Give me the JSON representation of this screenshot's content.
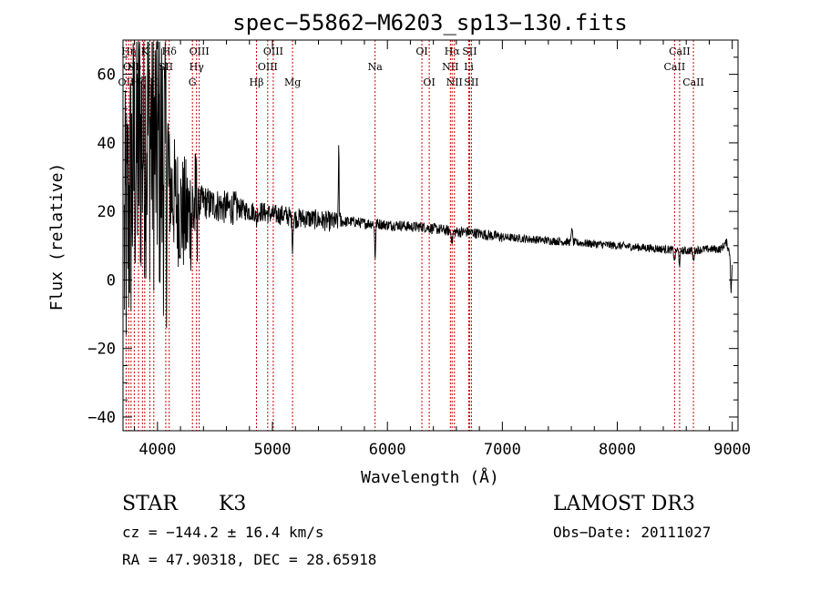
{
  "chart_data": {
    "type": "line",
    "title": "spec−55862−M6203_sp13−130.fits",
    "xlabel": "Wavelength (Å)",
    "ylabel": "Flux (relative)",
    "xlim": [
      3700,
      9050
    ],
    "ylim": [
      -44,
      70
    ],
    "x_ticks": [
      4000,
      5000,
      6000,
      7000,
      8000,
      9000
    ],
    "x_tick_labels": [
      "4000",
      "5000",
      "6000",
      "7000",
      "8000",
      "9000"
    ],
    "y_ticks": [
      -40,
      -20,
      0,
      20,
      40,
      60
    ],
    "y_tick_labels": [
      "−40",
      "−20",
      "0",
      "20",
      "40",
      "60"
    ],
    "series": [
      {
        "name": "spectrum",
        "anchors": [
          [
            3700,
            5
          ],
          [
            3750,
            20
          ],
          [
            3800,
            35
          ],
          [
            3850,
            40
          ],
          [
            3900,
            45
          ],
          [
            3950,
            42
          ],
          [
            4000,
            38
          ],
          [
            4050,
            34
          ],
          [
            4100,
            28
          ],
          [
            4150,
            24
          ],
          [
            4200,
            20
          ],
          [
            4250,
            18
          ],
          [
            4300,
            20
          ],
          [
            4350,
            22
          ],
          [
            4400,
            23
          ],
          [
            4450,
            22
          ],
          [
            4500,
            22
          ],
          [
            4600,
            21
          ],
          [
            4700,
            21
          ],
          [
            4800,
            20
          ],
          [
            4900,
            20
          ],
          [
            5000,
            19
          ],
          [
            5100,
            19
          ],
          [
            5200,
            18
          ],
          [
            5300,
            18
          ],
          [
            5400,
            17.5
          ],
          [
            5500,
            17
          ],
          [
            5600,
            17
          ],
          [
            5700,
            17
          ],
          [
            5800,
            16.5
          ],
          [
            5900,
            16.5
          ],
          [
            6000,
            16
          ],
          [
            6100,
            16
          ],
          [
            6200,
            15.5
          ],
          [
            6300,
            15.5
          ],
          [
            6400,
            15
          ],
          [
            6500,
            14.5
          ],
          [
            6600,
            14
          ],
          [
            6700,
            14
          ],
          [
            6800,
            13.5
          ],
          [
            6900,
            13
          ],
          [
            7000,
            12.5
          ],
          [
            7200,
            12
          ],
          [
            7400,
            11.5
          ],
          [
            7600,
            11
          ],
          [
            7800,
            10.5
          ],
          [
            8000,
            10
          ],
          [
            8200,
            9.5
          ],
          [
            8400,
            9
          ],
          [
            8600,
            8.5
          ],
          [
            8800,
            9
          ],
          [
            8900,
            9
          ],
          [
            8950,
            11
          ],
          [
            9000,
            5
          ]
        ],
        "features": [
          {
            "x": 5577,
            "depth": 24,
            "width": 4
          },
          {
            "x": 5893,
            "depth": -10,
            "width": 6
          },
          {
            "x": 5175,
            "depth": -8,
            "width": 6
          },
          {
            "x": 7605,
            "depth": 5,
            "width": 6
          },
          {
            "x": 4861,
            "depth": -3,
            "width": 8
          },
          {
            "x": 8498,
            "depth": -3,
            "width": 8
          },
          {
            "x": 8542,
            "depth": -4,
            "width": 8
          },
          {
            "x": 8662,
            "depth": -3,
            "width": 8
          },
          {
            "x": 6563,
            "depth": -3,
            "width": 8
          },
          {
            "x": 8990,
            "depth": -10,
            "width": 6
          }
        ]
      }
    ],
    "line_markers": [
      {
        "x": 3727,
        "label": "OII",
        "row": 3
      },
      {
        "x": 3750,
        "label": "Hη",
        "row": 1
      },
      {
        "x": 3770,
        "label": "OII",
        "row": 2
      },
      {
        "x": 3798,
        "label": "Ne",
        "row": 2
      },
      {
        "x": 3835,
        "label": "Hζ",
        "row": 3
      },
      {
        "x": 3869,
        "label": "",
        "row": 0
      },
      {
        "x": 3889,
        "label": "K",
        "row": 1
      },
      {
        "x": 3934,
        "label": "",
        "row": 0
      },
      {
        "x": 3968,
        "label": "H",
        "row": 3
      },
      {
        "x": 4072,
        "label": "SII",
        "row": 2
      },
      {
        "x": 4102,
        "label": "Hδ",
        "row": 1
      },
      {
        "x": 4304,
        "label": "G",
        "row": 3
      },
      {
        "x": 4340,
        "label": "Hγ",
        "row": 2
      },
      {
        "x": 4363,
        "label": "OIII",
        "row": 1
      },
      {
        "x": 4861,
        "label": "Hβ",
        "row": 3
      },
      {
        "x": 4959,
        "label": "OIII",
        "row": 2
      },
      {
        "x": 5007,
        "label": "OIII",
        "row": 1
      },
      {
        "x": 5175,
        "label": "Mg",
        "row": 3
      },
      {
        "x": 5893,
        "label": "Na",
        "row": 2
      },
      {
        "x": 6300,
        "label": "OI",
        "row": 1
      },
      {
        "x": 6364,
        "label": "OI",
        "row": 3
      },
      {
        "x": 6548,
        "label": "NII",
        "row": 2
      },
      {
        "x": 6563,
        "label": "Hα",
        "row": 1
      },
      {
        "x": 6583,
        "label": "NII",
        "row": 3
      },
      {
        "x": 6708,
        "label": "Li",
        "row": 2
      },
      {
        "x": 6716,
        "label": "SII",
        "row": 1
      },
      {
        "x": 6731,
        "label": "SII",
        "row": 3
      },
      {
        "x": 8498,
        "label": "CaII",
        "row": 2
      },
      {
        "x": 8542,
        "label": "CaII",
        "row": 1
      },
      {
        "x": 8662,
        "label": "CaII",
        "row": 3
      }
    ]
  },
  "info": {
    "class_label": "STAR",
    "subclass": "K3",
    "survey": "LAMOST DR3",
    "cz": "cz = −144.2 ± 16.4 km/s",
    "obs_date": "Obs−Date: 20111027",
    "radec": "RA =  47.90318, DEC =  28.65918"
  }
}
